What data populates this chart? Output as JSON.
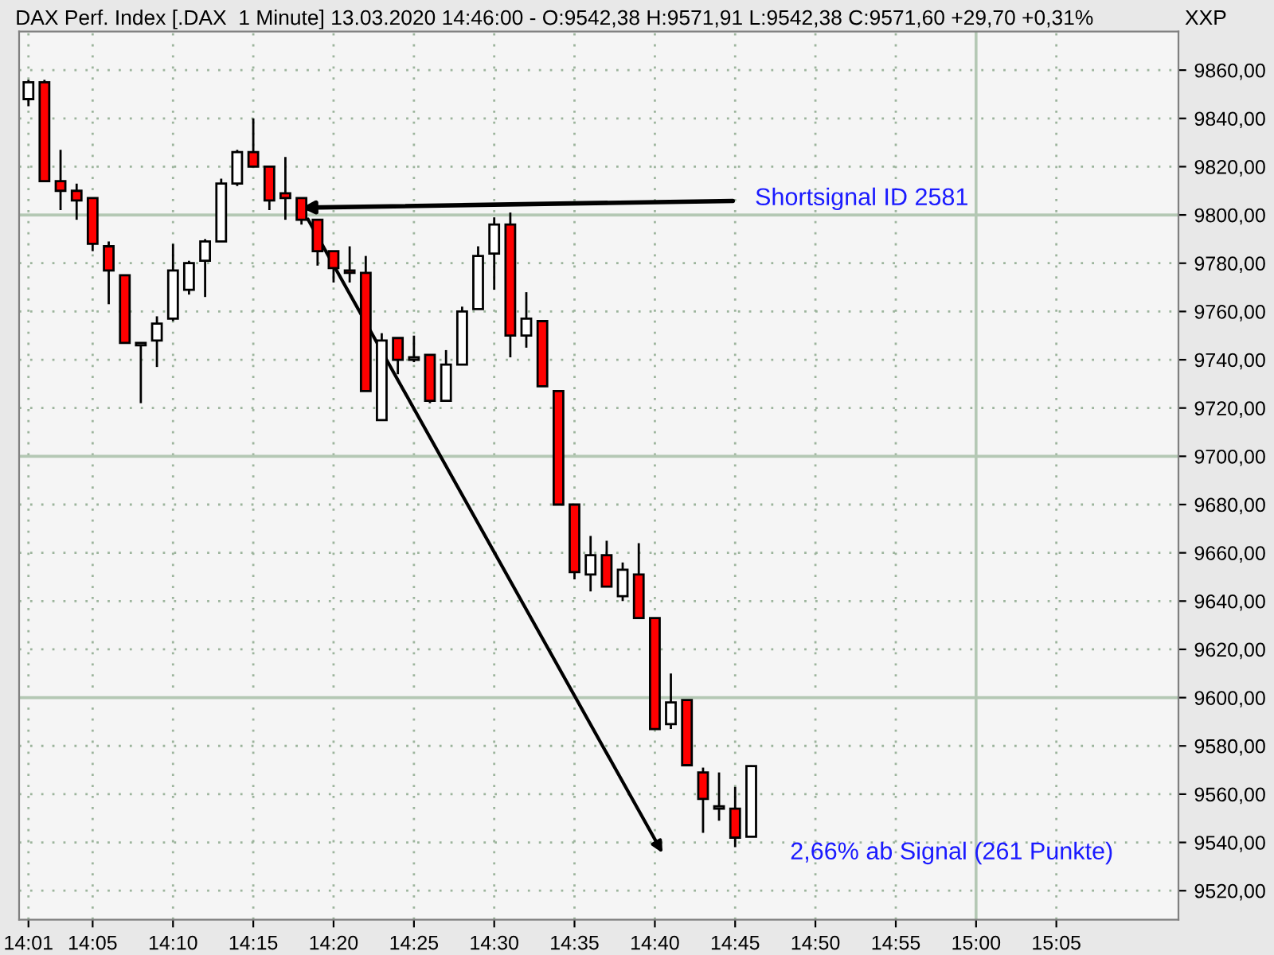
{
  "chart_data": {
    "type": "candlestick",
    "title": "DAX Perf. Index [.DAX  1 Minute] 13.03.2020 14:46:00 - O:9542,38 H:9571,91 L:9542,38 C:9571,60 +29,70 +0,31%",
    "x": [
      14.0167,
      14.0333,
      14.05,
      14.0667,
      14.0833,
      14.1,
      14.1167,
      14.1333,
      14.15,
      14.1667,
      14.1833,
      14.2,
      14.2167,
      14.2333,
      14.25,
      14.2667,
      14.2833,
      14.3,
      14.3167,
      14.3333,
      14.35,
      14.3667,
      14.3833,
      14.4,
      14.4167,
      14.4333,
      14.45,
      14.4667,
      14.4833,
      14.5,
      14.5167,
      14.5333,
      14.55,
      14.5667,
      14.5833,
      14.6,
      14.6167,
      14.6333,
      14.65,
      14.6667,
      14.6833,
      14.7,
      14.7167,
      14.7333,
      14.75,
      14.7667
    ],
    "ohlc": [
      [
        9848,
        9856,
        9845,
        9855
      ],
      [
        9855,
        9856,
        9814,
        9814
      ],
      [
        9814,
        9827,
        9802,
        9810
      ],
      [
        9810,
        9813,
        9798,
        9806
      ],
      [
        9807,
        9807,
        9785,
        9788
      ],
      [
        9787,
        9789,
        9763,
        9777
      ],
      [
        9775,
        9775,
        9747,
        9747
      ],
      [
        9746,
        9747,
        9722,
        9747
      ],
      [
        9748,
        9758,
        9737,
        9755
      ],
      [
        9757,
        9788,
        9756,
        9777
      ],
      [
        9769,
        9781,
        9767,
        9780
      ],
      [
        9781,
        9790,
        9766,
        9789
      ],
      [
        9789,
        9815,
        9789,
        9813
      ],
      [
        9813,
        9827,
        9812,
        9826
      ],
      [
        9826,
        9840,
        9820,
        9820
      ],
      [
        9820,
        9820,
        9802,
        9806
      ],
      [
        9809,
        9824,
        9798,
        9807
      ],
      [
        9807,
        9807,
        9796,
        9798
      ],
      [
        9798,
        9798,
        9779,
        9785
      ],
      [
        9785,
        9785,
        9772,
        9778
      ],
      [
        9777,
        9787,
        9772,
        9776
      ],
      [
        9776,
        9783,
        9727,
        9727
      ],
      [
        9715,
        9751,
        9715,
        9748
      ],
      [
        9749,
        9749,
        9734,
        9740
      ],
      [
        9740,
        9750,
        9739,
        9741
      ],
      [
        9742,
        9742,
        9722,
        9723
      ],
      [
        9723,
        9744,
        9723,
        9738
      ],
      [
        9738,
        9762,
        9738,
        9760
      ],
      [
        9761,
        9787,
        9761,
        9783
      ],
      [
        9784,
        9799,
        9769,
        9796
      ],
      [
        9796,
        9801,
        9741,
        9750
      ],
      [
        9750,
        9768,
        9745,
        9757
      ],
      [
        9756,
        9756,
        9729,
        9729
      ],
      [
        9727,
        9727,
        9680,
        9680
      ],
      [
        9680,
        9680,
        9649,
        9652
      ],
      [
        9651,
        9667,
        9644,
        9659
      ],
      [
        9659,
        9665,
        9646,
        9646
      ],
      [
        9642,
        9656,
        9640,
        9653
      ],
      [
        9651,
        9664,
        9633,
        9633
      ],
      [
        9633,
        9633,
        9587,
        9587
      ],
      [
        9589,
        9610,
        9587,
        9598
      ],
      [
        9599,
        9599,
        9572,
        9572
      ],
      [
        9569,
        9571,
        9544,
        9558
      ],
      [
        9554,
        9569,
        9549,
        9555
      ],
      [
        9554,
        9563,
        9538,
        9542
      ],
      [
        9542.38,
        9571.91,
        9542.38,
        9571.6
      ]
    ],
    "colors": [
      "#ffffff",
      "#ff0000",
      "#ff0000",
      "#ff0000",
      "#ff0000",
      "#ff0000",
      "#ff0000",
      "#ffffff",
      "#ffffff",
      "#ffffff",
      "#ffffff",
      "#ffffff",
      "#ffffff",
      "#ffffff",
      "#ff0000",
      "#ff0000",
      "#ff0000",
      "#ff0000",
      "#ff0000",
      "#ff0000",
      "#ff0000",
      "#ff0000",
      "#ffffff",
      "#ff0000",
      "#ffffff",
      "#ff0000",
      "#ffffff",
      "#ffffff",
      "#ffffff",
      "#ffffff",
      "#ff0000",
      "#ffffff",
      "#ff0000",
      "#ff0000",
      "#ff0000",
      "#ffffff",
      "#ff0000",
      "#ffffff",
      "#ff0000",
      "#ff0000",
      "#ffffff",
      "#ff0000",
      "#ff0000",
      "#ffffff",
      "#ff0000",
      "#ffffff"
    ],
    "xlim": [
      14.007,
      15.21
    ],
    "xticks": [
      {
        "value": 14.0167,
        "label": "14:01"
      },
      {
        "value": 14.0833,
        "label": "14:05"
      },
      {
        "value": 14.1667,
        "label": "14:10"
      },
      {
        "value": 14.25,
        "label": "14:15"
      },
      {
        "value": 14.3333,
        "label": "14:20"
      },
      {
        "value": 14.4167,
        "label": "14:25"
      },
      {
        "value": 14.5,
        "label": "14:30"
      },
      {
        "value": 14.5833,
        "label": "14:35"
      },
      {
        "value": 14.6667,
        "label": "14:40"
      },
      {
        "value": 14.75,
        "label": "14:45"
      },
      {
        "value": 14.8333,
        "label": "14:50"
      },
      {
        "value": 14.9167,
        "label": "14:55"
      },
      {
        "value": 15.0,
        "label": "15:00"
      },
      {
        "value": 15.0833,
        "label": "15:05"
      }
    ],
    "ylim": [
      9508,
      9876
    ],
    "yticks": [
      {
        "value": 9520,
        "label": "9520,00"
      },
      {
        "value": 9540,
        "label": "9540,00"
      },
      {
        "value": 9560,
        "label": "9560,00"
      },
      {
        "value": 9580,
        "label": "9580,00"
      },
      {
        "value": 9600,
        "label": "9600,00"
      },
      {
        "value": 9620,
        "label": "9620,00"
      },
      {
        "value": 9640,
        "label": "9640,00"
      },
      {
        "value": 9660,
        "label": "9660,00"
      },
      {
        "value": 9680,
        "label": "9680,00"
      },
      {
        "value": 9700,
        "label": "9700,00"
      },
      {
        "value": 9720,
        "label": "9720,00"
      },
      {
        "value": 9740,
        "label": "9740,00"
      },
      {
        "value": 9760,
        "label": "9760,00"
      },
      {
        "value": 9780,
        "label": "9780,00"
      },
      {
        "value": 9800,
        "label": "9800,00"
      },
      {
        "value": 9820,
        "label": "9820,00"
      },
      {
        "value": 9840,
        "label": "9840,00"
      },
      {
        "value": 9860,
        "label": "9860,00"
      }
    ],
    "ylabel": "XXP",
    "grid": true,
    "annotations": [
      {
        "text": "Shortsignal ID 2581",
        "x": 14.3,
        "y": 9803
      },
      "2,66% ab Signal (261 Punkte)"
    ]
  }
}
